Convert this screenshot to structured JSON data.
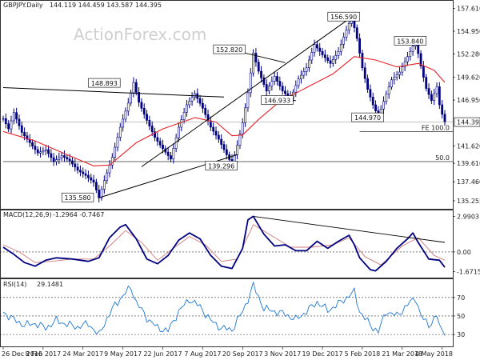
{
  "header": {
    "symbol": "GBPJPY.Daily",
    "ohlc": "144.119 144.459 143.587 144.395",
    "watermark": "ActionForex.com"
  },
  "colors": {
    "candle": "#000080",
    "ma": "#e8202a",
    "trendline": "#000000",
    "macd": "#000080",
    "signal": "#d07a7a",
    "rsi": "#1f77d4",
    "fib_line": "#333333",
    "current_price_box": "#ffffff"
  },
  "chart_data": [
    {
      "type": "candlestick",
      "title": "GBPJPY.Daily",
      "ylim": [
        134.6,
        158.2
      ],
      "price_ticks": [
        "157.610",
        "154.950",
        "152.280",
        "149.620",
        "146.950",
        "144.395",
        "141.620",
        "139.610",
        "137.460",
        "135.255"
      ],
      "x_ticks": [
        "26 Dec 2016",
        "8 Feb 2017",
        "24 Mar 2017",
        "9 May 2017",
        "22 Jun 2017",
        "7 Aug 2017",
        "20 Sep 2017",
        "3 Nov 2017",
        "19 Dec 2017",
        "5 Feb 2018",
        "21 Mar 2018",
        "4 May 2018"
      ],
      "close_path": [
        [
          0,
          144.8
        ],
        [
          2,
          143.6
        ],
        [
          4,
          145.5
        ],
        [
          7,
          143.2
        ],
        [
          10,
          142.0
        ],
        [
          13,
          140.8
        ],
        [
          16,
          141.2
        ],
        [
          19,
          139.8
        ],
        [
          22,
          140.5
        ],
        [
          25,
          139.9
        ],
        [
          28,
          138.8
        ],
        [
          31,
          138.2
        ],
        [
          34,
          137.4
        ],
        [
          36,
          135.6
        ],
        [
          38,
          137.6
        ],
        [
          41,
          140.3
        ],
        [
          44,
          143.8
        ],
        [
          47,
          146.6
        ],
        [
          49,
          149.0
        ],
        [
          51,
          146.7
        ],
        [
          54,
          144.6
        ],
        [
          57,
          142.6
        ],
        [
          60,
          141.3
        ],
        [
          63,
          140.1
        ],
        [
          66,
          143.8
        ],
        [
          69,
          146.4
        ],
        [
          72,
          147.7
        ],
        [
          75,
          146.0
        ],
        [
          78,
          143.8
        ],
        [
          81,
          142.4
        ],
        [
          84,
          140.6
        ],
        [
          86,
          139.5
        ],
        [
          88,
          141.7
        ],
        [
          90,
          144.3
        ],
        [
          92,
          147.8
        ],
        [
          94,
          152.4
        ],
        [
          96,
          150.3
        ],
        [
          99,
          148.0
        ],
        [
          102,
          149.7
        ],
        [
          105,
          148.0
        ],
        [
          108,
          147.1
        ],
        [
          111,
          149.4
        ],
        [
          114,
          150.7
        ],
        [
          117,
          153.4
        ],
        [
          120,
          152.2
        ],
        [
          123,
          151.2
        ],
        [
          126,
          152.6
        ],
        [
          129,
          155.1
        ],
        [
          131,
          156.6
        ],
        [
          133,
          154.1
        ],
        [
          135,
          150.7
        ],
        [
          137,
          148.2
        ],
        [
          139,
          146.4
        ],
        [
          141,
          145.0
        ],
        [
          143,
          146.8
        ],
        [
          146,
          149.3
        ],
        [
          149,
          150.2
        ],
        [
          152,
          152.0
        ],
        [
          155,
          153.8
        ],
        [
          157,
          150.9
        ],
        [
          159,
          148.3
        ],
        [
          161,
          146.9
        ],
        [
          163,
          148.5
        ],
        [
          164,
          146.4
        ],
        [
          165,
          145.3
        ],
        [
          166,
          144.4
        ]
      ],
      "moving_average": [
        [
          0,
          143.3
        ],
        [
          12,
          142.2
        ],
        [
          24,
          140.6
        ],
        [
          34,
          139.3
        ],
        [
          40,
          139.4
        ],
        [
          50,
          142.0
        ],
        [
          60,
          143.6
        ],
        [
          72,
          144.9
        ],
        [
          80,
          144.4
        ],
        [
          86,
          142.8
        ],
        [
          90,
          142.9
        ],
        [
          96,
          144.7
        ],
        [
          104,
          146.8
        ],
        [
          114,
          148.4
        ],
        [
          124,
          150.0
        ],
        [
          132,
          152.0
        ],
        [
          140,
          151.6
        ],
        [
          148,
          150.8
        ],
        [
          156,
          151.2
        ],
        [
          162,
          150.4
        ],
        [
          166,
          149.0
        ]
      ],
      "trendlines": [
        {
          "name": "upper-resistance",
          "points": [
            [
              0,
              148.4
            ],
            [
              83,
              147.3
            ]
          ]
        },
        {
          "name": "lower-channel",
          "points": [
            [
              36,
              135.6
            ],
            [
              88,
              140.6
            ]
          ]
        },
        {
          "name": "rise-trend",
          "points": [
            [
              52,
              139.2
            ],
            [
              131,
              156.6
            ]
          ]
        },
        {
          "name": "upper-triangle",
          "points": [
            [
              87,
              152.7
            ],
            [
              106,
              151.3
            ]
          ]
        }
      ],
      "price_labels": [
        {
          "text": "148.893",
          "x": 38,
          "y": 148.9
        },
        {
          "text": "135.580",
          "x": 28,
          "y": 135.6
        },
        {
          "text": "139.296",
          "x": 82,
          "y": 139.3
        },
        {
          "text": "152.820",
          "x": 85,
          "y": 152.8
        },
        {
          "text": "146.933",
          "x": 103,
          "y": 146.9
        },
        {
          "text": "156.590",
          "x": 128,
          "y": 156.6
        },
        {
          "text": "144.970",
          "x": 137,
          "y": 144.9
        },
        {
          "text": "153.840",
          "x": 153,
          "y": 153.8
        }
      ],
      "fib_levels": [
        {
          "label": "FE 100.0",
          "value": 143.3,
          "from_x": 134
        },
        {
          "label": "50.0",
          "value": 139.8,
          "from_x": 0
        }
      ],
      "horizontal_lines": [
        {
          "name": "support-146.9",
          "value": 146.9,
          "from_x": 100,
          "to_x": 110
        }
      ],
      "current_price": "144.395"
    },
    {
      "type": "line",
      "title": "MACD(12,26,9) -1.2964 -0.7467",
      "label": "MACD(12,26,9)",
      "values_text": "-1.2964 -0.7467",
      "ylim": [
        -2.1,
        3.3
      ],
      "y_ticks": [
        "2.9903",
        "0.00",
        "-1.6715"
      ],
      "series": [
        {
          "name": "MACD",
          "points": [
            [
              0,
              0.4
            ],
            [
              4,
              -0.2
            ],
            [
              8,
              -0.9
            ],
            [
              12,
              -1.2
            ],
            [
              16,
              -0.7
            ],
            [
              20,
              -0.5
            ],
            [
              26,
              -0.6
            ],
            [
              32,
              -0.8
            ],
            [
              36,
              -0.5
            ],
            [
              40,
              1.2
            ],
            [
              44,
              2.1
            ],
            [
              46,
              2.3
            ],
            [
              50,
              1.1
            ],
            [
              54,
              -0.6
            ],
            [
              58,
              -1.0
            ],
            [
              62,
              -0.3
            ],
            [
              66,
              1.0
            ],
            [
              70,
              1.6
            ],
            [
              74,
              1.1
            ],
            [
              78,
              -0.3
            ],
            [
              82,
              -1.2
            ],
            [
              86,
              -1.4
            ],
            [
              90,
              0.3
            ],
            [
              92,
              2.7
            ],
            [
              94,
              3.0
            ],
            [
              98,
              1.5
            ],
            [
              102,
              0.5
            ],
            [
              106,
              0.6
            ],
            [
              110,
              0.1
            ],
            [
              114,
              0.1
            ],
            [
              118,
              0.9
            ],
            [
              122,
              0.3
            ],
            [
              126,
              0.9
            ],
            [
              130,
              1.4
            ],
            [
              132,
              0.6
            ],
            [
              134,
              -0.5
            ],
            [
              138,
              -1.5
            ],
            [
              140,
              -1.6
            ],
            [
              144,
              -0.8
            ],
            [
              148,
              0.3
            ],
            [
              152,
              1.1
            ],
            [
              154,
              1.6
            ],
            [
              156,
              0.8
            ],
            [
              160,
              -0.6
            ],
            [
              164,
              -0.7
            ],
            [
              166,
              -1.3
            ]
          ]
        },
        {
          "name": "Signal",
          "points": [
            [
              0,
              0.6
            ],
            [
              6,
              0.0
            ],
            [
              12,
              -0.9
            ],
            [
              18,
              -0.8
            ],
            [
              26,
              -0.6
            ],
            [
              34,
              -0.6
            ],
            [
              40,
              0.5
            ],
            [
              46,
              1.8
            ],
            [
              52,
              0.8
            ],
            [
              58,
              -0.7
            ],
            [
              64,
              0.3
            ],
            [
              70,
              1.3
            ],
            [
              76,
              0.6
            ],
            [
              82,
              -0.8
            ],
            [
              88,
              -0.6
            ],
            [
              94,
              2.3
            ],
            [
              100,
              1.5
            ],
            [
              108,
              0.4
            ],
            [
              116,
              0.4
            ],
            [
              124,
              0.6
            ],
            [
              130,
              1.2
            ],
            [
              136,
              -0.4
            ],
            [
              142,
              -1.1
            ],
            [
              150,
              0.5
            ],
            [
              156,
              1.2
            ],
            [
              162,
              -0.3
            ],
            [
              166,
              -0.7
            ]
          ]
        }
      ],
      "trendline": [
        [
          94,
          3.0
        ],
        [
          166,
          0.8
        ]
      ]
    },
    {
      "type": "line",
      "title": "RSI(14) 29.1481",
      "label": "RSI(14)",
      "values_text": "29.1481",
      "ylim": [
        18,
        88
      ],
      "y_ticks": [
        "70",
        "50",
        "30"
      ],
      "series": [
        {
          "name": "RSI",
          "points": [
            [
              0,
              54
            ],
            [
              4,
              46
            ],
            [
              8,
              40
            ],
            [
              12,
              42
            ],
            [
              16,
              37
            ],
            [
              20,
              45
            ],
            [
              24,
              41
            ],
            [
              28,
              38
            ],
            [
              32,
              42
            ],
            [
              36,
              29
            ],
            [
              38,
              42
            ],
            [
              42,
              62
            ],
            [
              46,
              75
            ],
            [
              48,
              81
            ],
            [
              50,
              65
            ],
            [
              54,
              48
            ],
            [
              58,
              37
            ],
            [
              62,
              34
            ],
            [
              66,
              55
            ],
            [
              70,
              68
            ],
            [
              74,
              60
            ],
            [
              78,
              45
            ],
            [
              82,
              37
            ],
            [
              86,
              35
            ],
            [
              90,
              55
            ],
            [
              92,
              68
            ],
            [
              94,
              83
            ],
            [
              98,
              58
            ],
            [
              102,
              55
            ],
            [
              106,
              52
            ],
            [
              110,
              46
            ],
            [
              114,
              55
            ],
            [
              118,
              65
            ],
            [
              122,
              56
            ],
            [
              126,
              63
            ],
            [
              130,
              72
            ],
            [
              132,
              76
            ],
            [
              134,
              55
            ],
            [
              138,
              40
            ],
            [
              141,
              33
            ],
            [
              144,
              55
            ],
            [
              148,
              50
            ],
            [
              152,
              62
            ],
            [
              155,
              70
            ],
            [
              157,
              50
            ],
            [
              160,
              40
            ],
            [
              163,
              50
            ],
            [
              164,
              39
            ],
            [
              166,
              29
            ]
          ]
        }
      ]
    }
  ]
}
